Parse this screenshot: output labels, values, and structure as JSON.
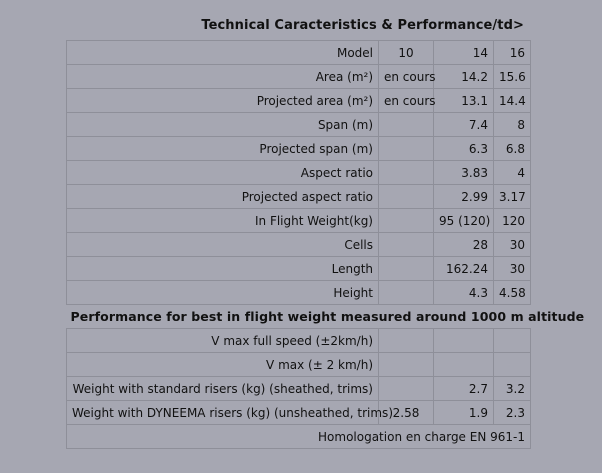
{
  "title": "Technical Caracteristics & Performance/td>",
  "spec_rows": [
    {
      "label": "Model",
      "v10": "10",
      "v14": "14",
      "v16": "16"
    },
    {
      "label": "Area (m²)",
      "v10": "en cours",
      "v14": "14.2",
      "v16": "15.6"
    },
    {
      "label": "Projected area (m²)",
      "v10": "en cours",
      "v14": "13.1",
      "v16": "14.4"
    },
    {
      "label": "Span (m)",
      "v10": "",
      "v14": "7.4",
      "v16": "8"
    },
    {
      "label": "Projected span (m)",
      "v10": "",
      "v14": "6.3",
      "v16": "6.8"
    },
    {
      "label": "Aspect ratio",
      "v10": "",
      "v14": "3.83",
      "v16": "4"
    },
    {
      "label": "Projected aspect ratio",
      "v10": "",
      "v14": "2.99",
      "v16": "3.17"
    },
    {
      "label": "In Flight Weight(kg)",
      "v10": "",
      "v14": "95 (120)",
      "v16": "120"
    },
    {
      "label": "Cells",
      "v10": "",
      "v14": "28",
      "v16": "30"
    },
    {
      "label": "Length",
      "v10": "",
      "v14": "162.24",
      "v16": "30"
    },
    {
      "label": "Height",
      "v10": "",
      "v14": "4.3",
      "v16": "4.58"
    }
  ],
  "performance_heading": "Performance for best in flight weight measured around 1000 m altitude",
  "performance_rows": [
    {
      "label": "V max full speed (±2km/h)",
      "v10": "",
      "v14": "",
      "v16": ""
    },
    {
      "label": "V max (± 2 km/h)",
      "v10": "",
      "v14": "",
      "v16": ""
    },
    {
      "label": "Weight with standard risers (kg) (sheathed, trims)",
      "v10": "",
      "v14": "2.7",
      "v16": "3.2"
    },
    {
      "label": "Weight with DYNEEMA risers (kg) (unsheathed, trims)",
      "v10": "2.58",
      "v14": "1.9",
      "v16": "2.3"
    }
  ],
  "footer": "Homologation en charge EN 961-1"
}
